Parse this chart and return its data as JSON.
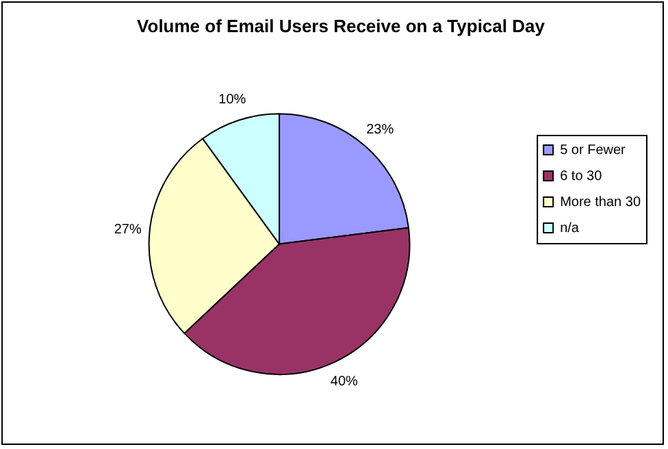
{
  "chart_data": {
    "type": "pie",
    "title": "Volume of Email Users Receive on a Typical Day",
    "categories": [
      "5 or Fewer",
      "6 to 30",
      "More than 30",
      "n/a"
    ],
    "values": [
      23,
      40,
      27,
      10
    ],
    "value_labels": [
      "23%",
      "40%",
      "27%",
      "10%"
    ],
    "colors": [
      "#9999ff",
      "#993366",
      "#ffffcc",
      "#ccffff"
    ],
    "legend": "right"
  }
}
